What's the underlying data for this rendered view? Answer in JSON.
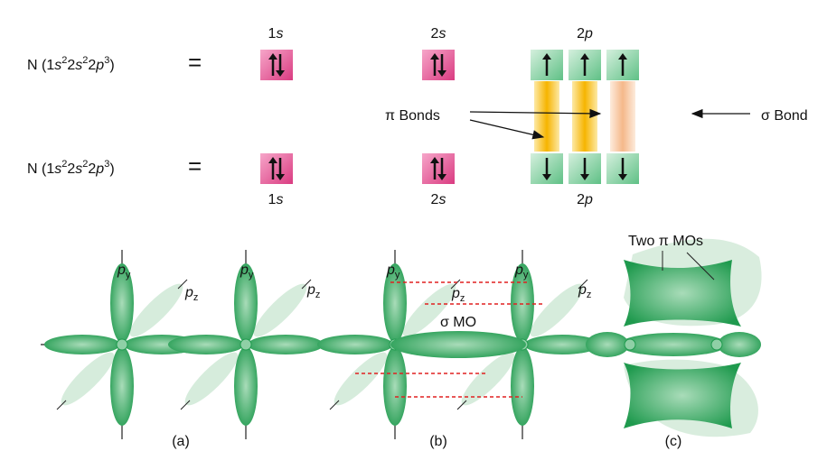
{
  "top_row": {
    "config": [
      "N (1",
      "s",
      "2",
      "2",
      "s",
      "2",
      "2",
      "p",
      "3",
      ")"
    ],
    "equals": "=",
    "orbitals": [
      {
        "n": "1",
        "l": "s"
      },
      {
        "n": "2",
        "l": "s"
      },
      {
        "n": "2",
        "l": "p"
      }
    ]
  },
  "bottom_row": {
    "config": [
      "N (1",
      "s",
      "2",
      "2",
      "s",
      "2",
      "2",
      "p",
      "3",
      ")"
    ],
    "equals": "=",
    "orbitals": [
      {
        "n": "1",
        "l": "s"
      },
      {
        "n": "2",
        "l": "s"
      },
      {
        "n": "2",
        "l": "p"
      }
    ]
  },
  "pi_bonds_label": "π Bonds",
  "sigma_bond_label": "σ Bond",
  "panels": [
    {
      "caption": "(a)",
      "labels": [
        {
          "main": "p",
          "sub": "y"
        },
        {
          "main": "p",
          "sub": "z"
        },
        {
          "main": "p",
          "sub": "y"
        },
        {
          "main": "p",
          "sub": "z"
        }
      ]
    },
    {
      "caption": "(b)",
      "labels": [
        {
          "main": "p",
          "sub": "y"
        },
        {
          "main": "p",
          "sub": "z"
        },
        {
          "main": "p",
          "sub": "y"
        },
        {
          "main": "p",
          "sub": "z"
        }
      ],
      "mo_label": "σ MO"
    },
    {
      "caption": "(c)",
      "mo_label": "Two π MOs"
    }
  ]
}
